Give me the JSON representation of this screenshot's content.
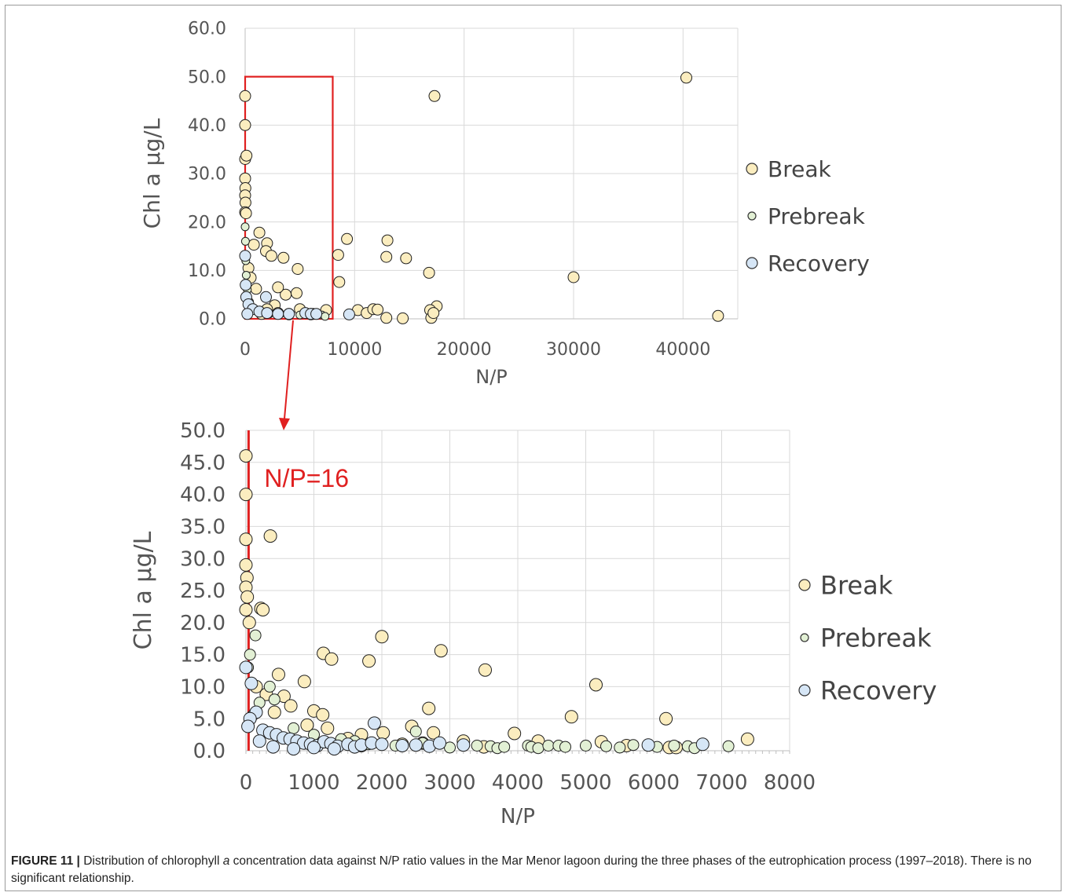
{
  "colors": {
    "break_fill": "#FBEDBF",
    "prebreak_fill": "#E2F0D4",
    "recovery_fill": "#D6E6F6",
    "marker_stroke": "#1f1f1f",
    "highlight": "#E02020",
    "grid": "#d9d9d9",
    "axis_text": "#555555"
  },
  "chart_data": [
    {
      "type": "scatter",
      "xlabel": "N/P",
      "ylabel": "Chl a µg/L",
      "xlim": [
        0,
        45000
      ],
      "ylim": [
        0,
        60
      ],
      "x_ticks": [
        "0",
        "10000",
        "20000",
        "30000",
        "40000"
      ],
      "y_ticks": [
        "0.0",
        "10.0",
        "20.0",
        "30.0",
        "40.0",
        "50.0",
        "60.0"
      ],
      "grid": true,
      "legend_position": "right",
      "zoom_box": {
        "x": [
          0,
          8000
        ],
        "y": [
          0,
          50
        ]
      },
      "series": [
        {
          "name": "Break",
          "points": [
            [
              40300,
              49.8
            ],
            [
              17300,
              46.0
            ],
            [
              9300,
              16.5
            ],
            [
              13000,
              16.2
            ],
            [
              8500,
              13.2
            ],
            [
              12900,
              12.8
            ],
            [
              14700,
              12.5
            ],
            [
              16800,
              9.5
            ],
            [
              30000,
              8.6
            ],
            [
              8600,
              7.6
            ],
            [
              43200,
              0.6
            ],
            [
              17500,
              2.6
            ],
            [
              16900,
              1.8
            ],
            [
              17000,
              0.2
            ],
            [
              17200,
              1.2
            ],
            [
              10300,
              1.8
            ],
            [
              11100,
              1.2
            ],
            [
              11700,
              2.0
            ],
            [
              12100,
              1.9
            ],
            [
              12900,
              0.2
            ],
            [
              14400,
              0.1
            ],
            [
              0,
              46.0
            ],
            [
              0,
              40.0
            ],
            [
              0,
              33.0
            ],
            [
              120,
              33.7
            ],
            [
              0,
              29.0
            ],
            [
              20,
              27.0
            ],
            [
              0,
              25.5
            ],
            [
              30,
              24.0
            ],
            [
              0,
              22.0
            ],
            [
              80,
              21.8
            ],
            [
              1300,
              17.8
            ],
            [
              2000,
              15.6
            ],
            [
              800,
              15.3
            ],
            [
              1900,
              14.0
            ],
            [
              2400,
              13.0
            ],
            [
              3500,
              12.6
            ],
            [
              4800,
              10.3
            ],
            [
              300,
              10.5
            ],
            [
              500,
              8.5
            ],
            [
              3700,
              5.0
            ],
            [
              4700,
              5.3
            ],
            [
              1000,
              6.2
            ],
            [
              3000,
              6.5
            ],
            [
              2700,
              2.8
            ],
            [
              5000,
              2.0
            ],
            [
              6000,
              1.0
            ],
            [
              7400,
              1.8
            ],
            [
              6200,
              1.0
            ],
            [
              4000,
              1.0
            ],
            [
              2000,
              2.0
            ],
            [
              3000,
              1.2
            ],
            [
              1500,
              1.0
            ]
          ]
        },
        {
          "name": "Prebreak",
          "points": [
            [
              0,
              19.0
            ],
            [
              30,
              16.0
            ],
            [
              60,
              12.0
            ],
            [
              100,
              9.0
            ],
            [
              200,
              6.0
            ],
            [
              400,
              3.5
            ],
            [
              800,
              2.0
            ],
            [
              1500,
              1.5
            ],
            [
              2200,
              1.0
            ],
            [
              3200,
              1.0
            ],
            [
              4000,
              0.6
            ],
            [
              5000,
              0.8
            ],
            [
              6000,
              0.6
            ],
            [
              7000,
              0.8
            ],
            [
              7300,
              0.5
            ]
          ]
        },
        {
          "name": "Recovery",
          "points": [
            [
              0,
              13.0
            ],
            [
              50,
              7.0
            ],
            [
              100,
              4.5
            ],
            [
              300,
              3.0
            ],
            [
              700,
              2.0
            ],
            [
              1300,
              1.5
            ],
            [
              2000,
              1.2
            ],
            [
              3000,
              1.0
            ],
            [
              4000,
              1.0
            ],
            [
              5500,
              1.2
            ],
            [
              6000,
              1.0
            ],
            [
              6500,
              1.0
            ],
            [
              9500,
              0.9
            ],
            [
              1900,
              4.5
            ],
            [
              200,
              1.0
            ]
          ]
        }
      ]
    },
    {
      "type": "scatter",
      "xlabel": "N/P",
      "ylabel": "Chl a µg/L",
      "xlim": [
        0,
        8000
      ],
      "ylim": [
        0,
        50
      ],
      "x_ticks": [
        "0",
        "1000",
        "2000",
        "3000",
        "4000",
        "5000",
        "6000",
        "7000",
        "8000"
      ],
      "y_ticks": [
        "0.0",
        "5.0",
        "10.0",
        "15.0",
        "20.0",
        "25.0",
        "30.0",
        "35.0",
        "40.0",
        "45.0",
        "50.0"
      ],
      "grid": true,
      "legend_position": "right",
      "reference_line": {
        "x": 16,
        "label": "N/P=16"
      },
      "series": [
        {
          "name": "Break",
          "points": [
            [
              0,
              46.0
            ],
            [
              0,
              40.0
            ],
            [
              0,
              33.0
            ],
            [
              360,
              33.5
            ],
            [
              0,
              29.0
            ],
            [
              15,
              27.0
            ],
            [
              0,
              25.5
            ],
            [
              20,
              24.0
            ],
            [
              0,
              22.0
            ],
            [
              220,
              22.2
            ],
            [
              250,
              22.0
            ],
            [
              50,
              20.0
            ],
            [
              2000,
              17.8
            ],
            [
              2870,
              15.6
            ],
            [
              1140,
              15.2
            ],
            [
              1260,
              14.3
            ],
            [
              1810,
              14.0
            ],
            [
              3520,
              12.6
            ],
            [
              480,
              11.9
            ],
            [
              860,
              10.8
            ],
            [
              5150,
              10.3
            ],
            [
              300,
              8.8
            ],
            [
              560,
              8.5
            ],
            [
              1000,
              6.2
            ],
            [
              1130,
              5.6
            ],
            [
              2690,
              6.6
            ],
            [
              4790,
              5.3
            ],
            [
              6180,
              5.0
            ],
            [
              3950,
              2.7
            ],
            [
              2440,
              3.8
            ],
            [
              2020,
              2.8
            ],
            [
              2760,
              2.8
            ],
            [
              1700,
              2.5
            ],
            [
              1500,
              1.9
            ],
            [
              7380,
              1.8
            ],
            [
              5230,
              1.4
            ],
            [
              6230,
              0.5
            ],
            [
              6330,
              0.5
            ],
            [
              660,
              7.0
            ],
            [
              420,
              6.0
            ],
            [
              150,
              10.0
            ],
            [
              900,
              4.0
            ],
            [
              1200,
              3.5
            ],
            [
              3200,
              1.5
            ],
            [
              4300,
              1.5
            ],
            [
              2300,
              1.0
            ],
            [
              1700,
              0.8
            ],
            [
              2600,
              1.2
            ],
            [
              3500,
              0.6
            ],
            [
              5600,
              0.8
            ]
          ]
        },
        {
          "name": "Prebreak",
          "points": [
            [
              140,
              18.0
            ],
            [
              60,
              15.0
            ],
            [
              30,
              13.0
            ],
            [
              350,
              10.0
            ],
            [
              420,
              8.0
            ],
            [
              200,
              7.5
            ],
            [
              100,
              5.5
            ],
            [
              700,
              3.5
            ],
            [
              1000,
              2.5
            ],
            [
              1400,
              1.8
            ],
            [
              1800,
              1.0
            ],
            [
              2200,
              0.8
            ],
            [
              2600,
              1.2
            ],
            [
              3000,
              0.5
            ],
            [
              3600,
              0.7
            ],
            [
              3700,
              0.4
            ],
            [
              3800,
              0.6
            ],
            [
              4150,
              0.8
            ],
            [
              4200,
              0.6
            ],
            [
              4300,
              0.4
            ],
            [
              4450,
              0.8
            ],
            [
              4600,
              0.8
            ],
            [
              4700,
              0.6
            ],
            [
              5000,
              0.8
            ],
            [
              5300,
              0.7
            ],
            [
              5500,
              0.5
            ],
            [
              5700,
              0.9
            ],
            [
              6050,
              0.6
            ],
            [
              6300,
              0.8
            ],
            [
              6500,
              0.7
            ],
            [
              6600,
              0.4
            ],
            [
              7100,
              0.7
            ],
            [
              2500,
              3.0
            ],
            [
              3400,
              0.8
            ],
            [
              1600,
              1.5
            ]
          ]
        },
        {
          "name": "Recovery",
          "points": [
            [
              0,
              13.0
            ],
            [
              80,
              10.5
            ],
            [
              150,
              6.0
            ],
            [
              60,
              5.0
            ],
            [
              30,
              3.8
            ],
            [
              250,
              3.2
            ],
            [
              350,
              2.8
            ],
            [
              450,
              2.5
            ],
            [
              550,
              2.0
            ],
            [
              650,
              1.8
            ],
            [
              750,
              1.5
            ],
            [
              850,
              1.2
            ],
            [
              950,
              1.0
            ],
            [
              1050,
              0.8
            ],
            [
              1150,
              1.4
            ],
            [
              1250,
              1.1
            ],
            [
              1350,
              0.7
            ],
            [
              1500,
              1.0
            ],
            [
              1600,
              0.6
            ],
            [
              1700,
              0.9
            ],
            [
              1890,
              4.3
            ],
            [
              1850,
              1.2
            ],
            [
              2000,
              1.0
            ],
            [
              2300,
              0.8
            ],
            [
              2500,
              0.9
            ],
            [
              2700,
              0.7
            ],
            [
              2850,
              1.2
            ],
            [
              3200,
              0.9
            ],
            [
              5920,
              0.9
            ],
            [
              6720,
              1.0
            ],
            [
              200,
              1.5
            ],
            [
              400,
              0.6
            ],
            [
              700,
              0.3
            ],
            [
              1000,
              0.5
            ],
            [
              1300,
              0.3
            ]
          ]
        }
      ]
    }
  ],
  "caption": {
    "label": "FIGURE 11 |",
    "text_1": "Distribution of chlorophyll",
    "text_italic": "a",
    "text_2": "concentration data against N/P ratio values in the Mar Menor lagoon during the three phases of the eutrophication process (1997–2018). There is no significant relationship."
  }
}
